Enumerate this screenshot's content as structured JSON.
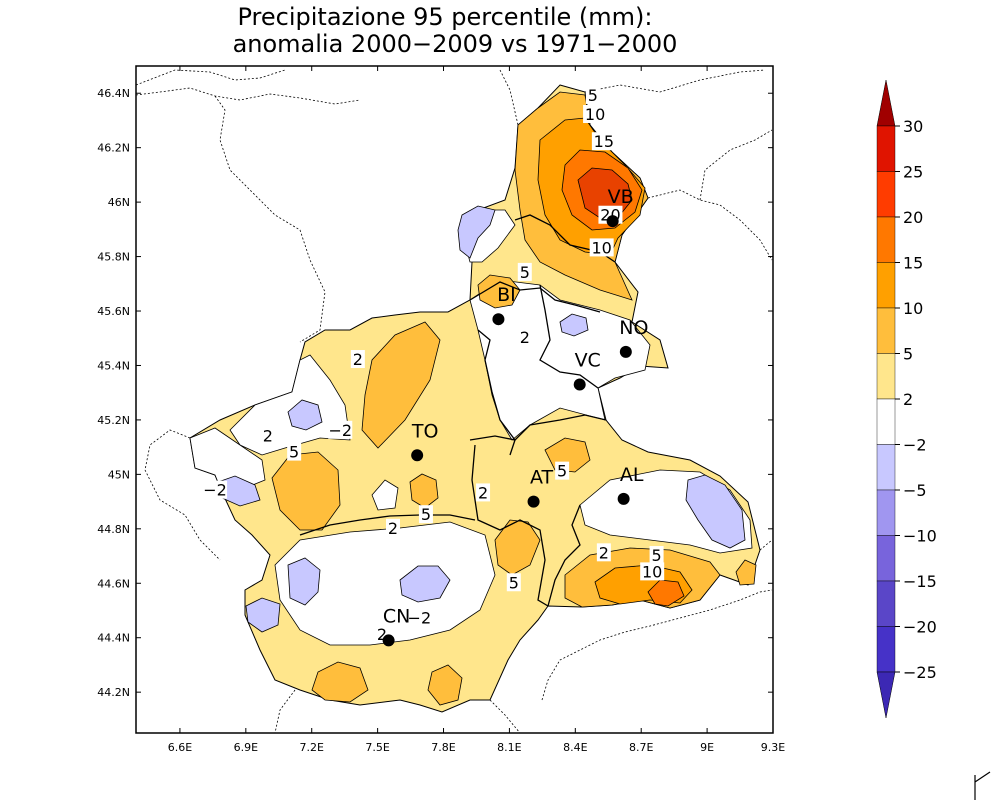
{
  "title": {
    "line1": "Precipitazione 95 percentile (mm):",
    "line2": "anomalia 2000−2009 vs 1971−2000"
  },
  "axes": {
    "x_ticks": [
      "6.6E",
      "6.9E",
      "7.2E",
      "7.5E",
      "7.8E",
      "8.1E",
      "8.4E",
      "8.7E",
      "9E",
      "9.3E"
    ],
    "y_ticks": [
      "46.4N",
      "46.2N",
      "46N",
      "45.8N",
      "45.6N",
      "45.4N",
      "45.2N",
      "45N",
      "44.8N",
      "44.6N",
      "44.4N",
      "44.2N"
    ],
    "x_range": [
      6.4,
      9.3
    ],
    "y_range": [
      44.05,
      46.5
    ]
  },
  "colorbar": {
    "labels": [
      "30",
      "25",
      "20",
      "15",
      "10",
      "5",
      "2",
      "−2",
      "−5",
      "−10",
      "−15",
      "−20",
      "−25"
    ],
    "bins_top_to_bottom": [
      {
        "color": "#a00000"
      },
      {
        "color": "#e01400"
      },
      {
        "color": "#ff3c00"
      },
      {
        "color": "#ff7800"
      },
      {
        "color": "#ffa000"
      },
      {
        "color": "#ffbe3c"
      },
      {
        "color": "#ffe68c"
      },
      {
        "color": "#ffffff"
      },
      {
        "color": "#c8c8ff"
      },
      {
        "color": "#a096f0"
      },
      {
        "color": "#7864dc"
      },
      {
        "color": "#5a46c8"
      },
      {
        "color": "#4632c8"
      },
      {
        "color": "#3c28b4"
      }
    ],
    "top_arrow_color": "#a00000",
    "bottom_arrow_color": "#3c28b4"
  },
  "cities": [
    {
      "code": "VB",
      "lon": 8.57,
      "lat": 45.93
    },
    {
      "code": "BI",
      "lon": 8.05,
      "lat": 45.57
    },
    {
      "code": "NO",
      "lon": 8.63,
      "lat": 45.45
    },
    {
      "code": "VC",
      "lon": 8.42,
      "lat": 45.33
    },
    {
      "code": "TO",
      "lon": 7.68,
      "lat": 45.07
    },
    {
      "code": "AT",
      "lon": 8.21,
      "lat": 44.9
    },
    {
      "code": "AL",
      "lon": 8.62,
      "lat": 44.91
    },
    {
      "code": "CN",
      "lon": 7.55,
      "lat": 44.39
    }
  ],
  "contour_labels": [
    {
      "text": "5",
      "lon": 8.48,
      "lat": 46.39
    },
    {
      "text": "10",
      "lon": 8.49,
      "lat": 46.32
    },
    {
      "text": "15",
      "lon": 8.53,
      "lat": 46.22
    },
    {
      "text": "20",
      "lon": 8.56,
      "lat": 45.95
    },
    {
      "text": "10",
      "lon": 8.52,
      "lat": 45.83
    },
    {
      "text": "5",
      "lon": 8.17,
      "lat": 45.74
    },
    {
      "text": "2",
      "lon": 8.17,
      "lat": 45.5
    },
    {
      "text": "2",
      "lon": 7.41,
      "lat": 45.42
    },
    {
      "text": "−2",
      "lon": 7.33,
      "lat": 45.16
    },
    {
      "text": "2",
      "lon": 7.0,
      "lat": 45.14
    },
    {
      "text": "5",
      "lon": 7.12,
      "lat": 45.08
    },
    {
      "text": "−2",
      "lon": 6.76,
      "lat": 44.94
    },
    {
      "text": "5",
      "lon": 7.72,
      "lat": 44.85
    },
    {
      "text": "2",
      "lon": 7.57,
      "lat": 44.8
    },
    {
      "text": "2",
      "lon": 7.98,
      "lat": 44.93
    },
    {
      "text": "5",
      "lon": 8.34,
      "lat": 45.01
    },
    {
      "text": "2",
      "lon": 8.53,
      "lat": 44.71
    },
    {
      "text": "5",
      "lon": 8.12,
      "lat": 44.6
    },
    {
      "text": "5",
      "lon": 8.77,
      "lat": 44.7
    },
    {
      "text": "10",
      "lon": 8.75,
      "lat": 44.64
    },
    {
      "text": "−2",
      "lon": 7.69,
      "lat": 44.47
    },
    {
      "text": "2",
      "lon": 7.52,
      "lat": 44.41
    }
  ]
}
